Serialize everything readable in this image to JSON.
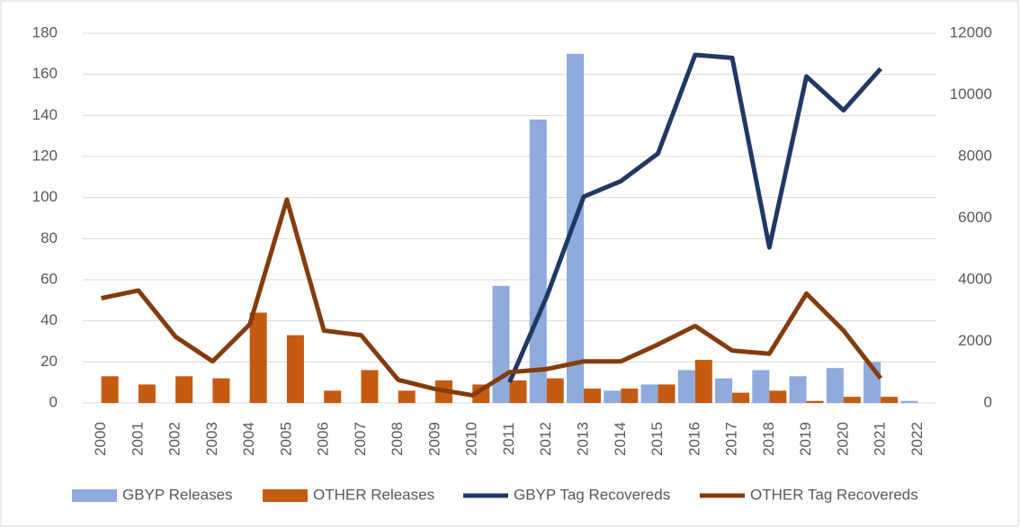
{
  "chart_data": {
    "type": "bar_line",
    "categories": [
      "2000",
      "2001",
      "2002",
      "2003",
      "2004",
      "2005",
      "2006",
      "2007",
      "2008",
      "2009",
      "2010",
      "2011",
      "2012",
      "2013",
      "2014",
      "2015",
      "2016",
      "2017",
      "2018",
      "2019",
      "2020",
      "2021",
      "2022"
    ],
    "series": [
      {
        "name": "GBYP Releases",
        "color": "#8faadc",
        "kind": "bar",
        "values": [
          null,
          null,
          null,
          null,
          null,
          null,
          null,
          null,
          null,
          null,
          null,
          57,
          138,
          170,
          6,
          9,
          16,
          12,
          16,
          13,
          17,
          20,
          1
        ]
      },
      {
        "name": "OTHER Releases",
        "color": "#c55a11",
        "kind": "bar",
        "values": [
          13,
          9,
          13,
          12,
          44,
          33,
          6,
          16,
          6,
          11,
          9,
          11,
          12,
          7,
          7,
          9,
          21,
          5,
          6,
          1,
          3,
          3,
          null
        ]
      },
      {
        "name": "GBYP Tag Recovereds",
        "color": "#203864",
        "kind": "line",
        "axis": "y2",
        "values": [
          null,
          null,
          null,
          null,
          null,
          null,
          null,
          null,
          null,
          null,
          null,
          670,
          3450,
          6700,
          7200,
          8100,
          11300,
          11200,
          5050,
          10600,
          9500,
          10850,
          null
        ]
      },
      {
        "name": "OTHER Tag Recovereds",
        "color": "#843c0c",
        "kind": "line",
        "axis": "y2",
        "values": [
          3400,
          3650,
          2150,
          1350,
          2550,
          6600,
          2350,
          2200,
          750,
          450,
          250,
          1000,
          1100,
          1350,
          1350,
          1900,
          2500,
          1700,
          1600,
          3550,
          2350,
          800,
          null
        ]
      }
    ],
    "ylim": [
      0,
      180
    ],
    "yticks": [
      0,
      20,
      40,
      60,
      80,
      100,
      120,
      140,
      160,
      180
    ],
    "y2lim": [
      0,
      12000
    ],
    "y2ticks": [
      0,
      2000,
      4000,
      6000,
      8000,
      10000,
      12000
    ],
    "grid": true,
    "legend": "bottom"
  }
}
